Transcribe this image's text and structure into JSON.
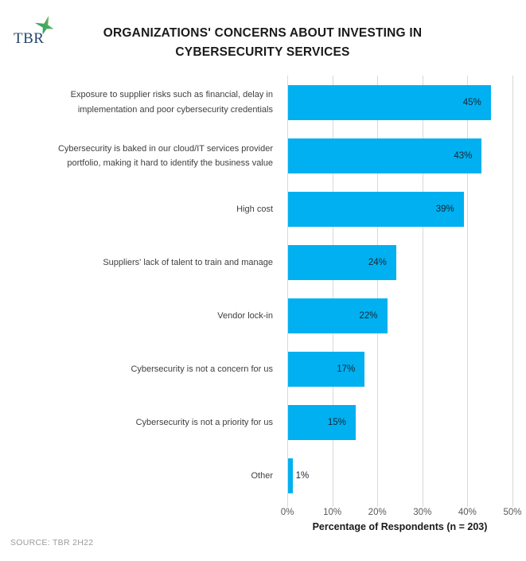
{
  "header": {
    "logo_text": "TBR",
    "title_line1": "ORGANIZATIONS' CONCERNS ABOUT INVESTING IN",
    "title_line2": "CYBERSECURITY SERVICES"
  },
  "chart_data": {
    "type": "bar",
    "orientation": "horizontal",
    "title": "ORGANIZATIONS' CONCERNS ABOUT INVESTING IN CYBERSECURITY SERVICES",
    "categories": [
      "Exposure to supplier risks such as financial, delay in implementation and poor cybersecurity credentials",
      "Cybersecurity is baked in our cloud/IT services provider portfolio, making it hard to identify the business value",
      "High cost",
      "Suppliers' lack of talent to train and manage",
      "Vendor lock-in",
      "Cybersecurity is not a concern for us",
      "Cybersecurity is not a priority for us",
      "Other"
    ],
    "values": [
      45,
      43,
      39,
      24,
      22,
      17,
      15,
      1
    ],
    "value_labels": [
      "45%",
      "43%",
      "39%",
      "24%",
      "22%",
      "17%",
      "15%",
      "1%"
    ],
    "x_ticks": [
      "0%",
      "10%",
      "20%",
      "30%",
      "40%",
      "50%"
    ],
    "xlim": [
      0,
      50
    ],
    "xlabel": "Percentage of Respondents (n = 203)",
    "grid": true,
    "legend": "none",
    "bar_color": "#00B0F0",
    "grid_color": "#d9d9d9",
    "value_label_color": "#1b2531",
    "category_label_color": "#3f3f3f"
  },
  "footer": {
    "source": "SOURCE: TBR 2H22"
  }
}
